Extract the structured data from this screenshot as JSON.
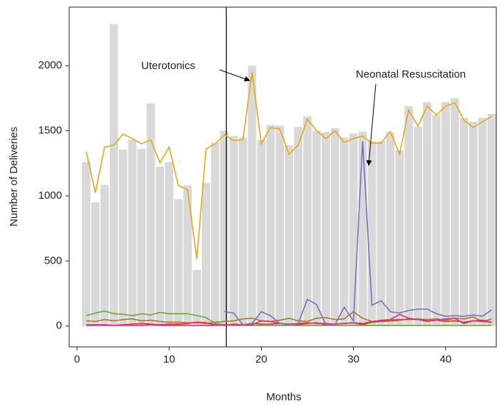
{
  "chart_data": {
    "type": "bar",
    "x_label": "Months",
    "y_label": "Number of Deliveries",
    "x": [
      1,
      2,
      3,
      4,
      5,
      6,
      7,
      8,
      9,
      10,
      11,
      12,
      13,
      14,
      15,
      16,
      17,
      18,
      19,
      20,
      21,
      22,
      23,
      24,
      25,
      26,
      27,
      28,
      29,
      30,
      31,
      32,
      33,
      34,
      35,
      36,
      37,
      38,
      39,
      40,
      41,
      42,
      43,
      44,
      45
    ],
    "xlim": [
      -0.85,
      45.5
    ],
    "ylim": [
      -160,
      2450
    ],
    "xticks": [
      0,
      10,
      20,
      30,
      40
    ],
    "yticks": [
      0,
      500,
      1000,
      1500,
      2000
    ],
    "reference_line": {
      "x": 16.2,
      "color": "#000000"
    },
    "series": [
      {
        "type": "bar",
        "color": "#d9d9d9",
        "values": [
          1260,
          950,
          1085,
          2320,
          1355,
          1430,
          1360,
          1710,
          1225,
          1260,
          975,
          1080,
          430,
          1100,
          1410,
          1500,
          1460,
          1450,
          2000,
          1430,
          1545,
          1540,
          1390,
          1530,
          1610,
          1500,
          1490,
          1520,
          1450,
          1480,
          1495,
          1420,
          1420,
          1490,
          1350,
          1690,
          1530,
          1720,
          1620,
          1720,
          1750,
          1600,
          1570,
          1600,
          1630
        ]
      },
      {
        "type": "line",
        "color": "#6aa832",
        "values": [
          80,
          100,
          115,
          95,
          90,
          80,
          95,
          85,
          105,
          95,
          95,
          95,
          80,
          65,
          20,
          10,
          5,
          5,
          5,
          5,
          5,
          5,
          5,
          5,
          5,
          5,
          5,
          5,
          5,
          5,
          5,
          5,
          5,
          5,
          5,
          5,
          5,
          5,
          5,
          5,
          5,
          5,
          5,
          5,
          5
        ]
      },
      {
        "type": "line",
        "color": "#a8762a",
        "values": [
          40,
          35,
          50,
          40,
          50,
          55,
          40,
          45,
          35,
          30,
          30,
          25,
          25,
          20,
          30,
          35,
          40,
          55,
          60,
          40,
          35,
          45,
          60,
          40,
          35,
          60,
          65,
          50,
          55,
          110,
          60,
          35,
          45,
          50,
          50,
          50,
          55,
          50,
          55,
          45,
          60,
          55,
          70,
          35,
          55
        ]
      },
      {
        "type": "line",
        "color": "#d9352a",
        "values": [
          10,
          10,
          10,
          5,
          10,
          15,
          20,
          15,
          10,
          15,
          15,
          20,
          30,
          25,
          10,
          5,
          15,
          10,
          10,
          40,
          35,
          20,
          15,
          10,
          20,
          25,
          10,
          15,
          20,
          25,
          10,
          30,
          35,
          40,
          45,
          55,
          50,
          40,
          45,
          35,
          40,
          30,
          40,
          35,
          30
        ]
      },
      {
        "type": "line",
        "color": "#e7298a",
        "values": [
          5,
          5,
          5,
          5,
          5,
          5,
          5,
          10,
          5,
          5,
          5,
          5,
          5,
          5,
          5,
          10,
          10,
          10,
          20,
          15,
          15,
          20,
          15,
          20,
          25,
          20,
          20,
          15,
          20,
          25,
          20,
          35,
          40,
          50,
          90,
          60,
          50,
          35,
          45,
          55,
          60,
          20,
          40,
          45,
          30
        ]
      },
      {
        "type": "line",
        "color": "#7b6fbf",
        "values": [
          null,
          null,
          null,
          null,
          null,
          null,
          null,
          null,
          null,
          null,
          null,
          null,
          null,
          null,
          null,
          110,
          100,
          10,
          20,
          110,
          80,
          20,
          10,
          20,
          205,
          165,
          10,
          10,
          145,
          40,
          1420,
          160,
          195,
          110,
          100,
          120,
          130,
          130,
          95,
          75,
          80,
          75,
          85,
          75,
          125
        ]
      },
      {
        "type": "line",
        "color": "#e6a817",
        "values": [
          1340,
          1025,
          1375,
          1390,
          1475,
          1440,
          1400,
          1430,
          1255,
          1375,
          1080,
          1045,
          515,
          1360,
          1400,
          1470,
          1425,
          1430,
          1950,
          1400,
          1525,
          1515,
          1320,
          1390,
          1590,
          1500,
          1440,
          1500,
          1410,
          1440,
          1460,
          1405,
          1405,
          1495,
          1320,
          1660,
          1535,
          1690,
          1620,
          1690,
          1715,
          1580,
          1525,
          1570,
          1610
        ]
      }
    ],
    "annotations": [
      {
        "text": "Uterotonics"
      },
      {
        "text": "Neonatal Resuscitation"
      }
    ]
  }
}
